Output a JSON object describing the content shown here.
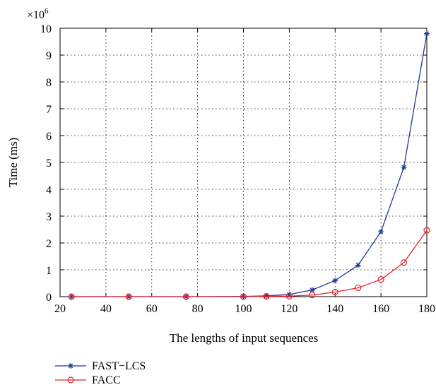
{
  "chart_data": {
    "type": "line",
    "title": "",
    "xlabel": "The lengths of input sequences",
    "ylabel": "Time (ms)",
    "y_multiplier": "×10",
    "y_exponent": "6",
    "xlim": [
      20,
      180
    ],
    "ylim": [
      0,
      10
    ],
    "xticks": [
      20,
      40,
      60,
      80,
      100,
      120,
      140,
      160,
      180
    ],
    "yticks": [
      0,
      1,
      2,
      3,
      4,
      5,
      6,
      7,
      8,
      9,
      10
    ],
    "grid": true,
    "legend_position": "bottom-left",
    "series": [
      {
        "name": "FAST−LCS",
        "color": "#1f3a93",
        "marker": "star",
        "x": [
          25,
          50,
          75,
          100,
          110,
          120,
          130,
          140,
          150,
          160,
          170,
          180
        ],
        "y": [
          0,
          0,
          0,
          0.01,
          0.03,
          0.08,
          0.25,
          0.6,
          1.17,
          2.42,
          4.82,
          9.8
        ]
      },
      {
        "name": "FACC",
        "color": "#e8202a",
        "marker": "circle",
        "x": [
          25,
          50,
          75,
          100,
          110,
          120,
          130,
          140,
          150,
          160,
          170,
          180
        ],
        "y": [
          0,
          0,
          0,
          0,
          0.01,
          0.02,
          0.06,
          0.17,
          0.33,
          0.64,
          1.27,
          2.47
        ]
      }
    ]
  }
}
